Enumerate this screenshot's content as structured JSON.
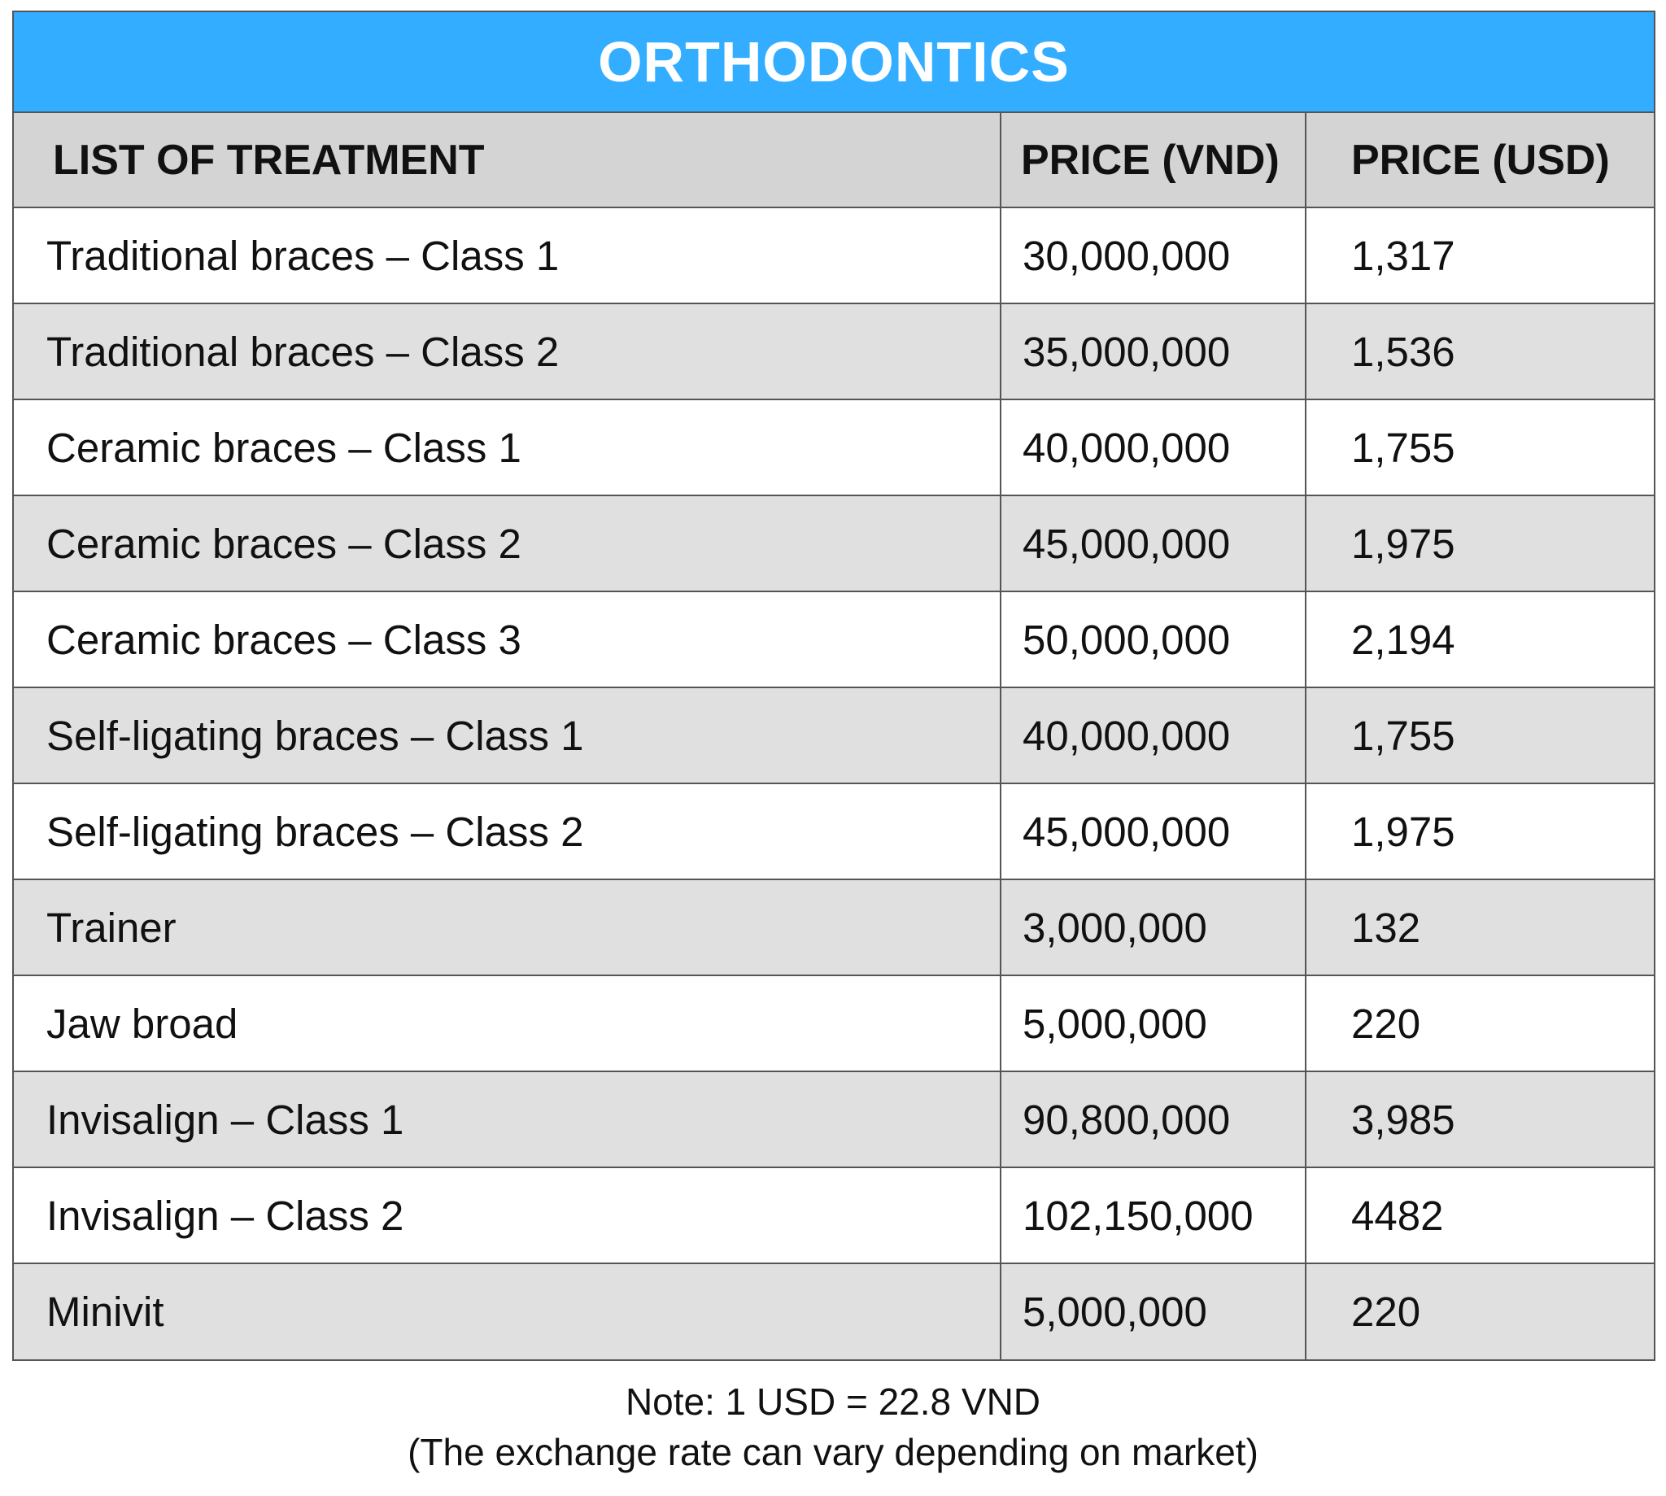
{
  "title": "ORTHODONTICS",
  "headers": {
    "treatment": "LIST OF TREATMENT",
    "price_vnd": "PRICE (VND)",
    "price_usd": "PRICE (USD)"
  },
  "rows": [
    {
      "treatment": "Traditional braces – Class 1",
      "vnd": "30,000,000",
      "usd": "1,317"
    },
    {
      "treatment": "Traditional braces – Class 2",
      "vnd": "35,000,000",
      "usd": "1,536"
    },
    {
      "treatment": "Ceramic braces – Class 1",
      "vnd": "40,000,000",
      "usd": "1,755"
    },
    {
      "treatment": "Ceramic braces – Class 2",
      "vnd": "45,000,000",
      "usd": "1,975"
    },
    {
      "treatment": "Ceramic braces – Class 3",
      "vnd": "50,000,000",
      "usd": "2,194"
    },
    {
      "treatment": "Self-ligating braces – Class 1",
      "vnd": "40,000,000",
      "usd": "1,755"
    },
    {
      "treatment": "Self-ligating braces – Class 2",
      "vnd": "45,000,000",
      "usd": "1,975"
    },
    {
      "treatment": "Trainer",
      "vnd": "3,000,000",
      "usd": "132"
    },
    {
      "treatment": "Jaw broad",
      "vnd": "5,000,000",
      "usd": "220"
    },
    {
      "treatment": "Invisalign – Class 1",
      "vnd": "90,800,000",
      "usd": "3,985"
    },
    {
      "treatment": "Invisalign – Class 2",
      "vnd": "102,150,000",
      "usd": "4482"
    },
    {
      "treatment": "Minivit",
      "vnd": "5,000,000",
      "usd": "220"
    }
  ],
  "note": {
    "line1": "Note: 1 USD = 22.8 VND",
    "line2": "(The exchange rate can vary depending on market)"
  },
  "colors": {
    "title_bar": "#33adff",
    "header_row": "#d4d4d4",
    "stripe": "#e0e0e0",
    "border": "#555555"
  }
}
